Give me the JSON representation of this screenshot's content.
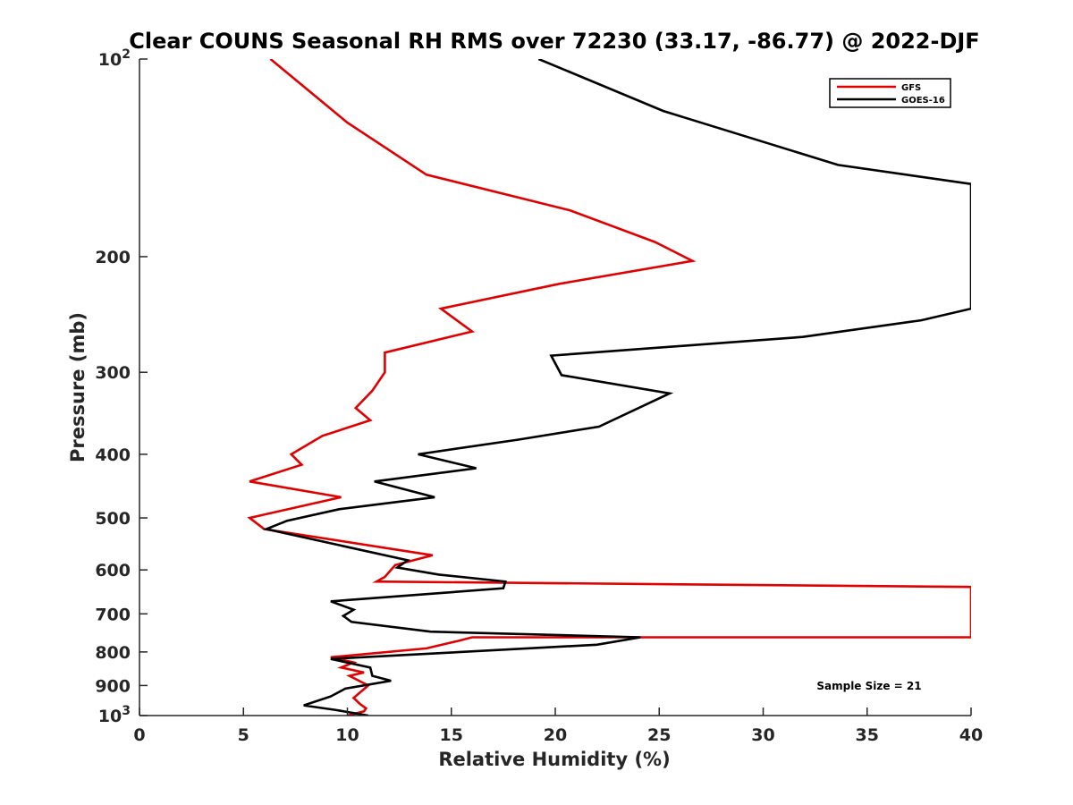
{
  "chart_data": {
    "type": "line",
    "title": "Clear COUNS Seasonal RH RMS over 72230 (33.17, -86.77) @ 2022-DJF",
    "xlabel": "Relative Humidity (%)",
    "ylabel": "Pressure (mb)",
    "xlim": [
      0,
      40
    ],
    "ylim": [
      100,
      1000
    ],
    "yscale": "log",
    "y_reversed": true,
    "x_ticks": [
      0,
      5,
      10,
      15,
      20,
      25,
      30,
      35,
      40
    ],
    "x_tick_labels": [
      "0",
      "5",
      "10",
      "15",
      "20",
      "25",
      "30",
      "35",
      "40"
    ],
    "y_ticks": [
      100,
      200,
      300,
      400,
      500,
      600,
      700,
      800,
      900,
      1000
    ],
    "y_tick_labels": [
      {
        "base": "10",
        "exp": "2"
      },
      {
        "text": "200"
      },
      {
        "text": "300"
      },
      {
        "text": "400"
      },
      {
        "text": "500"
      },
      {
        "text": "600"
      },
      {
        "text": "700"
      },
      {
        "text": "800"
      },
      {
        "text": "900"
      },
      {
        "base": "10",
        "exp": "3"
      }
    ],
    "legend_position": "top-right",
    "annotation": "Sample Size = 21",
    "series": [
      {
        "name": "GFS",
        "color": "#e00000",
        "points": [
          [
            6.3,
            100
          ],
          [
            10,
            125
          ],
          [
            13.8,
            150
          ],
          [
            20.7,
            170
          ],
          [
            24.8,
            190
          ],
          [
            26.6,
            203
          ],
          [
            20.2,
            220
          ],
          [
            14.5,
            240
          ],
          [
            16,
            260
          ],
          [
            11.8,
            280
          ],
          [
            11.8,
            300
          ],
          [
            11.2,
            320
          ],
          [
            10.4,
            340
          ],
          [
            11.1,
            355
          ],
          [
            8.8,
            375
          ],
          [
            7.3,
            400
          ],
          [
            7.8,
            415
          ],
          [
            5.3,
            440
          ],
          [
            9.7,
            465
          ],
          [
            5.3,
            500
          ],
          [
            6,
            520
          ],
          [
            14.1,
            570
          ],
          [
            12.3,
            590
          ],
          [
            11.8,
            615
          ],
          [
            11.4,
            625
          ],
          [
            40,
            637
          ],
          [
            40,
            760
          ],
          [
            16,
            760
          ],
          [
            15.3,
            770
          ],
          [
            13.8,
            790
          ],
          [
            9.2,
            815
          ],
          [
            10.3,
            830
          ],
          [
            9.7,
            845
          ],
          [
            10.8,
            860
          ],
          [
            10.1,
            870
          ],
          [
            11,
            900
          ],
          [
            10.3,
            940
          ],
          [
            10.6,
            960
          ],
          [
            10.9,
            975
          ],
          [
            10.8,
            985
          ],
          [
            10,
            1000
          ]
        ]
      },
      {
        "name": "GOES-16",
        "color": "#000000",
        "points": [
          [
            19.2,
            100
          ],
          [
            25.2,
            120
          ],
          [
            33.6,
            145
          ],
          [
            40,
            155
          ],
          [
            40,
            240
          ],
          [
            37.6,
            250
          ],
          [
            31.9,
            265
          ],
          [
            19.8,
            283
          ],
          [
            20.3,
            303
          ],
          [
            25.5,
            323
          ],
          [
            22.1,
            363
          ],
          [
            18.2,
            380
          ],
          [
            13.4,
            400
          ],
          [
            16.2,
            420
          ],
          [
            11.3,
            440
          ],
          [
            14.2,
            465
          ],
          [
            9.6,
            485
          ],
          [
            7.1,
            505
          ],
          [
            6.1,
            520
          ],
          [
            12.9,
            580
          ],
          [
            12.4,
            595
          ],
          [
            14.4,
            610
          ],
          [
            17.6,
            625
          ],
          [
            17.5,
            640
          ],
          [
            9.2,
            670
          ],
          [
            10.3,
            690
          ],
          [
            9.8,
            705
          ],
          [
            10.2,
            720
          ],
          [
            14,
            745
          ],
          [
            24.1,
            760
          ],
          [
            22,
            780
          ],
          [
            9.2,
            820
          ],
          [
            11.1,
            845
          ],
          [
            11.2,
            870
          ],
          [
            12.1,
            885
          ],
          [
            9.9,
            910
          ],
          [
            9.2,
            935
          ],
          [
            7.9,
            965
          ],
          [
            9.4,
            980
          ],
          [
            11,
            1000
          ]
        ]
      }
    ]
  }
}
